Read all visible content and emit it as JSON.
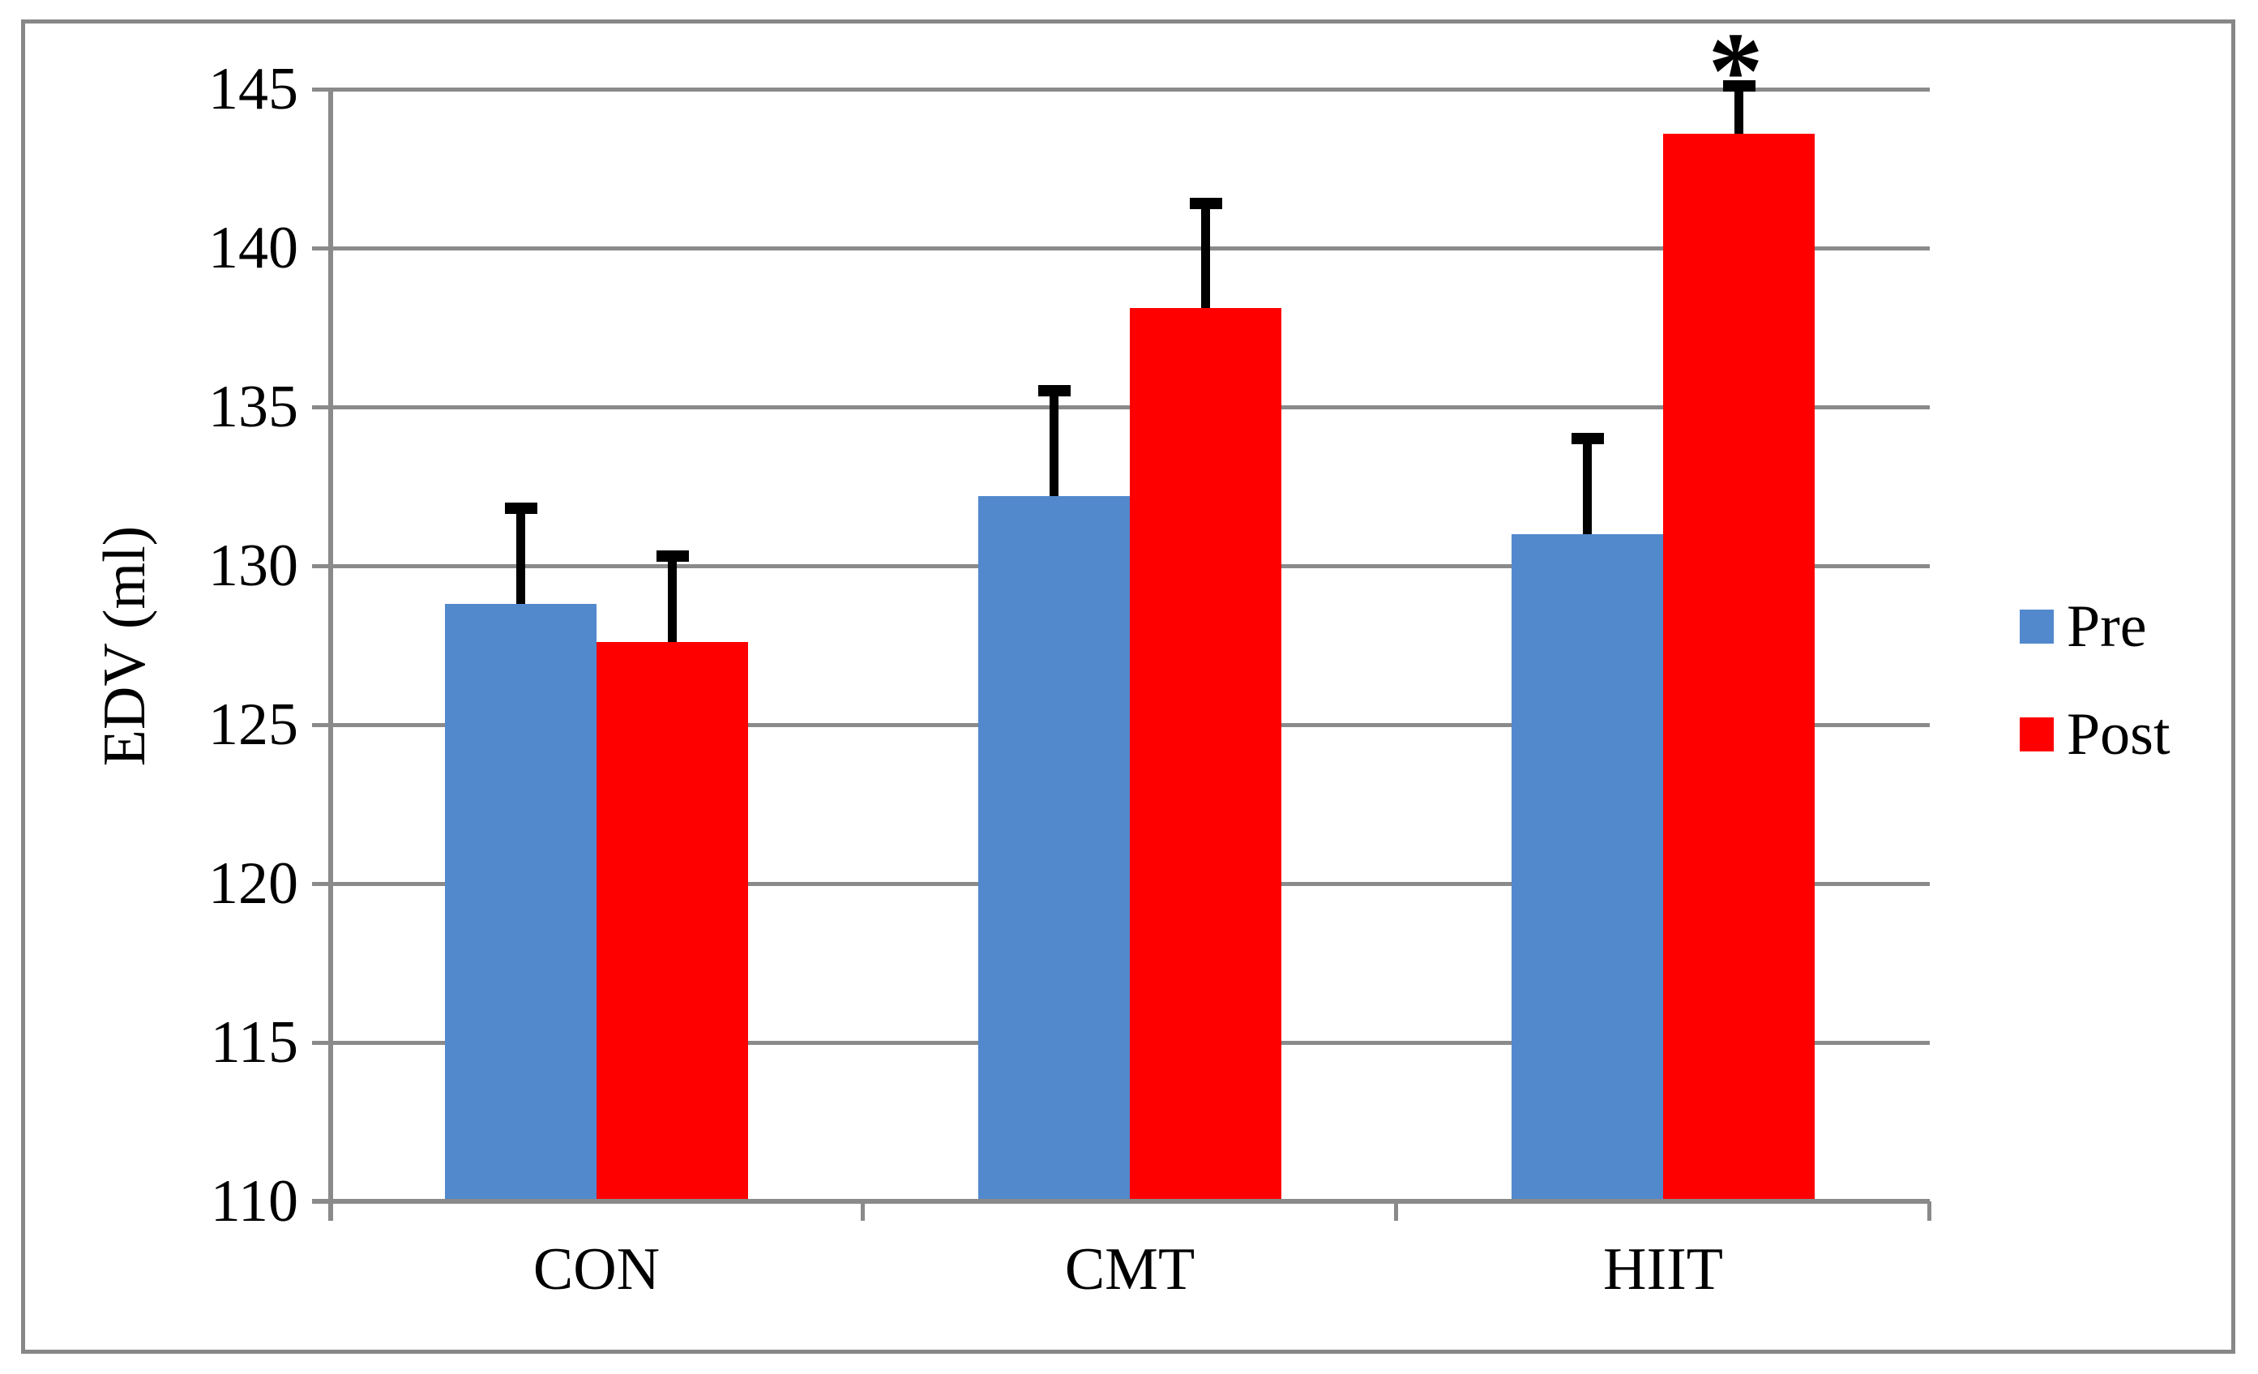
{
  "figure": {
    "background": "#ffffff",
    "border_color": "#878787"
  },
  "chart_data": {
    "type": "bar",
    "title": "",
    "categories": [
      "CON",
      "CMT",
      "HIIT"
    ],
    "series": [
      {
        "name": "Pre",
        "color": "#5289CD",
        "values": [
          128.8,
          132.2,
          131.0
        ],
        "error_plus": [
          3.0,
          3.3,
          3.0
        ]
      },
      {
        "name": "Post",
        "color": "#FE0000",
        "values": [
          127.6,
          138.1,
          143.6
        ],
        "error_plus": [
          2.7,
          3.3,
          1.5
        ]
      }
    ],
    "xlabel": "",
    "ylabel": "EDV (ml)",
    "ylim": [
      110,
      145
    ],
    "yticks": [
      110,
      115,
      120,
      125,
      130,
      135,
      140,
      145
    ],
    "grid": true,
    "error_bars": "upper-only",
    "legend_position": "right-middle",
    "annotations": [
      {
        "text": "*",
        "series": "Post",
        "category": "HIIT"
      }
    ],
    "colors": {
      "gridline": "#8A8A8A",
      "axis": "#8A8A8A",
      "text": "#000000"
    }
  }
}
